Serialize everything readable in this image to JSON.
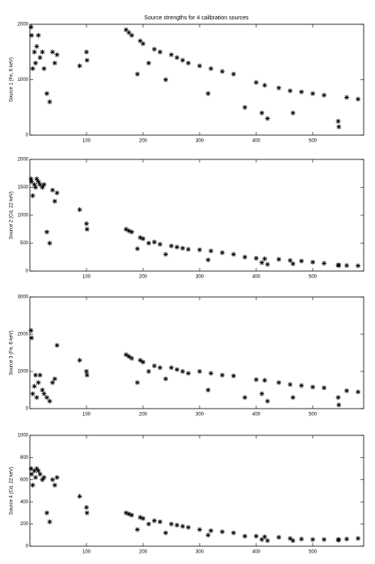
{
  "chart_data": [
    {
      "type": "scatter",
      "title": "Source strengths for 4 calibration sources",
      "ylabel": "Source 1 (Fe, 6 keV)",
      "color": "#000000",
      "x": [
        2,
        3,
        5,
        8,
        10,
        12,
        15,
        18,
        22,
        25,
        30,
        35,
        40,
        44,
        48,
        88,
        100,
        101,
        170,
        175,
        180,
        190,
        195,
        200,
        210,
        220,
        230,
        240,
        250,
        260,
        270,
        280,
        300,
        315,
        320,
        340,
        360,
        380,
        400,
        410,
        415,
        420,
        440,
        460,
        465,
        480,
        500,
        520,
        545,
        546,
        560,
        580
      ],
      "values": [
        1950,
        1800,
        1200,
        1500,
        1300,
        1600,
        1800,
        1400,
        1500,
        1200,
        750,
        600,
        1500,
        1300,
        1450,
        1250,
        1500,
        1350,
        1900,
        1850,
        1800,
        1100,
        1700,
        1650,
        1300,
        1550,
        1500,
        1000,
        1450,
        1400,
        1350,
        1300,
        1250,
        750,
        1200,
        1150,
        1100,
        500,
        950,
        400,
        900,
        300,
        850,
        800,
        400,
        780,
        750,
        720,
        250,
        150,
        680,
        650
      ],
      "xlim": [
        0,
        590
      ],
      "ylim": [
        0,
        2000
      ],
      "xticks": [
        100,
        200,
        300,
        400,
        500
      ],
      "yticks": [
        0,
        1000,
        2000
      ]
    },
    {
      "type": "scatter",
      "ylabel": "Source 2 (Cd, 22 keV)",
      "color": "#000000",
      "x": [
        2,
        3,
        5,
        8,
        10,
        12,
        15,
        18,
        22,
        25,
        30,
        35,
        40,
        44,
        48,
        88,
        100,
        101,
        170,
        175,
        180,
        190,
        195,
        200,
        210,
        220,
        230,
        240,
        250,
        260,
        270,
        280,
        300,
        315,
        320,
        340,
        360,
        380,
        400,
        410,
        415,
        420,
        440,
        460,
        465,
        480,
        500,
        520,
        545,
        546,
        560,
        580
      ],
      "values": [
        1650,
        1600,
        1350,
        1550,
        1500,
        1650,
        1600,
        1550,
        1500,
        1550,
        700,
        500,
        1450,
        1250,
        1400,
        1100,
        850,
        750,
        750,
        720,
        700,
        400,
        600,
        580,
        500,
        520,
        480,
        300,
        450,
        430,
        410,
        390,
        380,
        200,
        360,
        330,
        300,
        250,
        230,
        150,
        220,
        120,
        210,
        190,
        130,
        180,
        160,
        140,
        110,
        100,
        100,
        95
      ],
      "xlim": [
        0,
        590
      ],
      "ylim": [
        0,
        2000
      ],
      "xticks": [
        100,
        200,
        300,
        400,
        500
      ],
      "yticks": [
        0,
        500,
        1000,
        1500,
        2000
      ]
    },
    {
      "type": "scatter",
      "ylabel": "Source 3 (Fe, 6 keV)",
      "color": "#000000",
      "x": [
        2,
        3,
        5,
        8,
        10,
        12,
        15,
        18,
        22,
        25,
        30,
        35,
        40,
        44,
        48,
        88,
        100,
        101,
        170,
        175,
        180,
        190,
        195,
        200,
        210,
        220,
        230,
        240,
        250,
        260,
        270,
        280,
        300,
        315,
        320,
        340,
        360,
        380,
        400,
        410,
        415,
        420,
        440,
        460,
        465,
        480,
        500,
        520,
        545,
        546,
        560,
        580
      ],
      "values": [
        2100,
        1900,
        400,
        600,
        900,
        300,
        700,
        900,
        500,
        400,
        300,
        200,
        700,
        800,
        1700,
        1300,
        1000,
        900,
        1450,
        1400,
        1350,
        700,
        1300,
        1250,
        1000,
        1150,
        1100,
        800,
        1100,
        1050,
        1000,
        950,
        1000,
        500,
        950,
        900,
        880,
        300,
        780,
        400,
        760,
        200,
        700,
        650,
        300,
        620,
        580,
        560,
        300,
        100,
        480,
        450
      ],
      "xlim": [
        0,
        590
      ],
      "ylim": [
        0,
        3000
      ],
      "xticks": [
        100,
        200,
        300,
        400,
        500
      ],
      "yticks": [
        0,
        1000,
        2000,
        3000
      ]
    },
    {
      "type": "scatter",
      "ylabel": "Source 4 (Cd, 22 keV)",
      "color": "#000000",
      "x": [
        2,
        3,
        5,
        8,
        10,
        12,
        15,
        18,
        22,
        25,
        30,
        35,
        40,
        44,
        48,
        88,
        100,
        101,
        170,
        175,
        180,
        190,
        195,
        200,
        210,
        220,
        230,
        240,
        250,
        260,
        270,
        280,
        300,
        315,
        320,
        340,
        360,
        380,
        400,
        410,
        415,
        420,
        440,
        460,
        465,
        480,
        500,
        520,
        545,
        546,
        560,
        580
      ],
      "values": [
        700,
        650,
        550,
        680,
        620,
        700,
        680,
        650,
        600,
        620,
        300,
        220,
        600,
        550,
        620,
        450,
        350,
        300,
        300,
        290,
        280,
        150,
        260,
        250,
        200,
        230,
        220,
        120,
        200,
        190,
        180,
        170,
        150,
        100,
        140,
        130,
        120,
        90,
        90,
        60,
        85,
        50,
        80,
        70,
        50,
        65,
        60,
        60,
        60,
        55,
        65,
        70
      ],
      "xlim": [
        0,
        590
      ],
      "ylim": [
        0,
        1000
      ],
      "xticks": [
        100,
        200,
        300,
        400,
        500
      ],
      "yticks": [
        0,
        200,
        400,
        600,
        800,
        1000
      ]
    }
  ]
}
